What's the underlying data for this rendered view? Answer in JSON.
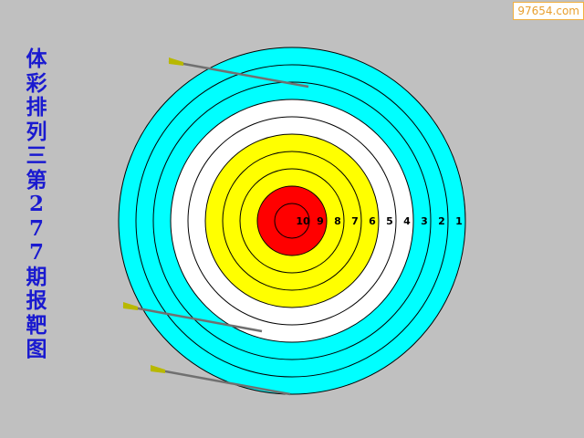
{
  "title_chars": [
    "体",
    "彩",
    "排",
    "列",
    "三",
    "第",
    "2",
    "7",
    "7",
    "期",
    "报",
    "靶",
    "图"
  ],
  "title": "体彩排列三第277期报靶图",
  "watermark": "97654.com",
  "rings": [
    {
      "score": "1",
      "color": "#00ffff"
    },
    {
      "score": "2",
      "color": "#00ffff"
    },
    {
      "score": "3",
      "color": "#00ffff"
    },
    {
      "score": "4",
      "color": "#ffffff"
    },
    {
      "score": "5",
      "color": "#ffffff"
    },
    {
      "score": "6",
      "color": "#ffff00"
    },
    {
      "score": "7",
      "color": "#ffff00"
    },
    {
      "score": "8",
      "color": "#ffff00"
    },
    {
      "score": "9",
      "color": "#ff0000"
    },
    {
      "score": "10",
      "color": "#ff0000"
    }
  ],
  "arrow_count": 3
}
